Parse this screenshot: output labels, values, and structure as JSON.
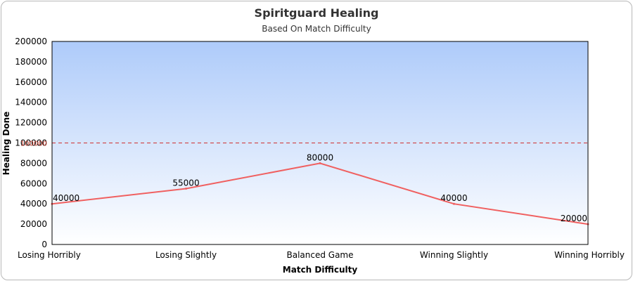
{
  "chart_data": {
    "type": "line",
    "title": "Spiritguard Healing",
    "subtitle": "Based On Match Difficulty",
    "xlabel": "Match Difficulty",
    "ylabel": "Healing Done",
    "categories": [
      "Losing Horribly",
      "Losing Slightly",
      "Balanced Game",
      "Winning Slightly",
      "Winning Horribly"
    ],
    "values": [
      40000,
      55000,
      80000,
      40000,
      20000
    ],
    "data_labels": [
      "40000",
      "55000",
      "80000",
      "40000",
      "20000"
    ],
    "ylim": [
      0,
      200000
    ],
    "yticks": [
      "0",
      "20000",
      "40000",
      "60000",
      "80000",
      "100000",
      "120000",
      "140000",
      "160000",
      "180000",
      "200000"
    ],
    "reference_line": {
      "value": 100000,
      "label": "100000",
      "style": "dashed"
    },
    "line_color": "#f06060",
    "reference_color": "#d03030",
    "background_gradient": [
      "#aecbfa",
      "#ffffff"
    ],
    "grid": false,
    "legend": "none"
  }
}
